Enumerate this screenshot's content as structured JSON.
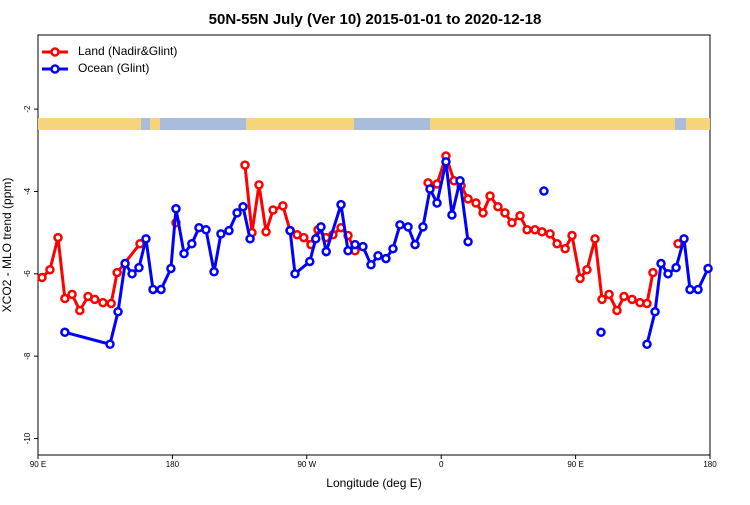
{
  "chart_data": {
    "type": "line",
    "title": "50N-55N July (Ver 10)   2015-01-01 to 2020-12-18",
    "xlabel": "Longitude (deg E)",
    "ylabel": "XCO2 - MLO trend (ppm)",
    "xlim": [
      90,
      540
    ],
    "ylim": [
      -10.4,
      -0.2
    ],
    "xticks": [
      {
        "value": 90,
        "label": "90 E"
      },
      180,
      {
        "value": 270,
        "label": "90 W"
      },
      {
        "value": 360,
        "label": "0"
      },
      {
        "value": 450,
        "label": "90 E"
      },
      {
        "value": 540,
        "label": "180"
      }
    ],
    "yticks": [
      -2,
      -4,
      -6,
      -8,
      -10
    ],
    "grid": false,
    "legend": "top-left",
    "series": [
      {
        "name": "Land (Nadir&Glint)",
        "color": "#ff0000",
        "x": [
          92.7,
          98,
          103.4,
          108,
          112.8,
          118,
          123.5,
          128,
          133.5,
          139,
          143,
          158.3,
          null,
          182.4,
          null,
          228.6,
          233.3,
          238,
          242.7,
          247.4,
          254,
          258.8,
          263.5,
          268,
          272.8,
          277.5,
          282.9,
          287.5,
          292.9,
          297.6,
          302.3,
          null,
          351.2,
          357.2,
          363.2,
          368.6,
          373.3,
          378,
          383.3,
          388,
          392.7,
          398,
          402.7,
          407.4,
          412.8,
          417.5,
          422.8,
          427.5,
          432.9,
          437.6,
          443,
          447.6,
          453,
          457.6,
          463,
          467.7,
          472.4,
          477.7,
          482.4,
          487.8,
          493.1,
          497.8,
          501.8,
          null,
          518.6
        ],
        "values": [
          -6.09,
          -5.9,
          -5.12,
          -6.6,
          -6.5,
          -6.89,
          -6.55,
          -6.62,
          -6.7,
          -6.72,
          -5.97,
          -5.27,
          null,
          -4.76,
          null,
          -3.36,
          -5.0,
          -3.84,
          -4.98,
          -4.45,
          -4.35,
          -4.95,
          -5.05,
          -5.12,
          -5.29,
          -4.93,
          -5.12,
          -5.05,
          -4.88,
          -5.07,
          -5.44,
          null,
          -3.79,
          -3.82,
          -3.14,
          -3.74,
          -3.86,
          -4.18,
          -4.28,
          -4.52,
          -4.11,
          -4.37,
          -4.52,
          -4.76,
          -4.59,
          -4.93,
          -4.93,
          -4.98,
          -5.03,
          -5.27,
          -5.39,
          -5.07,
          -6.11,
          -5.9,
          -5.15,
          -6.62,
          -6.5,
          -6.89,
          -6.55,
          -6.62,
          -6.7,
          -6.72,
          -5.97,
          null,
          -5.27
        ]
      },
      {
        "name": "Ocean (Glint)",
        "color": "#0000ff",
        "x": [
          108,
          138.2,
          143.6,
          148.3,
          153,
          157.6,
          162.3,
          167,
          172.4,
          179,
          182.4,
          187.8,
          193,
          197.8,
          202.5,
          207.9,
          212.5,
          217.9,
          223.3,
          227.3,
          232,
          null,
          258.8,
          262.1,
          272,
          276,
          279.5,
          283,
          292.9,
          297.6,
          302.3,
          307.6,
          313,
          317.7,
          323,
          327.7,
          332.4,
          337.8,
          342.5,
          347.8,
          352.5,
          357.2,
          363.2,
          367.2,
          372.6,
          378,
          null,
          428.8,
          null,
          467,
          null,
          497.8,
          503.2,
          507.2,
          511.9,
          517.3,
          522.6,
          526.6,
          532,
          538.7
        ],
        "values": [
          -7.42,
          -7.71,
          -6.92,
          -5.75,
          -6.0,
          -5.85,
          -5.15,
          -6.38,
          -6.38,
          -5.87,
          -4.42,
          -5.51,
          -5.27,
          -4.88,
          -4.93,
          -5.95,
          -5.03,
          -4.95,
          -4.52,
          -4.37,
          -5.15,
          null,
          -4.95,
          -6.0,
          -5.7,
          -5.15,
          -4.86,
          -5.46,
          -4.32,
          -5.44,
          -5.29,
          -5.34,
          -5.78,
          -5.56,
          -5.63,
          -5.39,
          -4.81,
          -4.86,
          -5.29,
          -4.86,
          -3.94,
          -4.28,
          -3.28,
          -4.57,
          -3.74,
          -5.22,
          null,
          -3.99,
          null,
          -7.42,
          null,
          -7.71,
          -6.92,
          -5.75,
          -6.0,
          -5.85,
          -5.15,
          -6.38,
          -6.38,
          -5.87
        ]
      }
    ]
  }
}
